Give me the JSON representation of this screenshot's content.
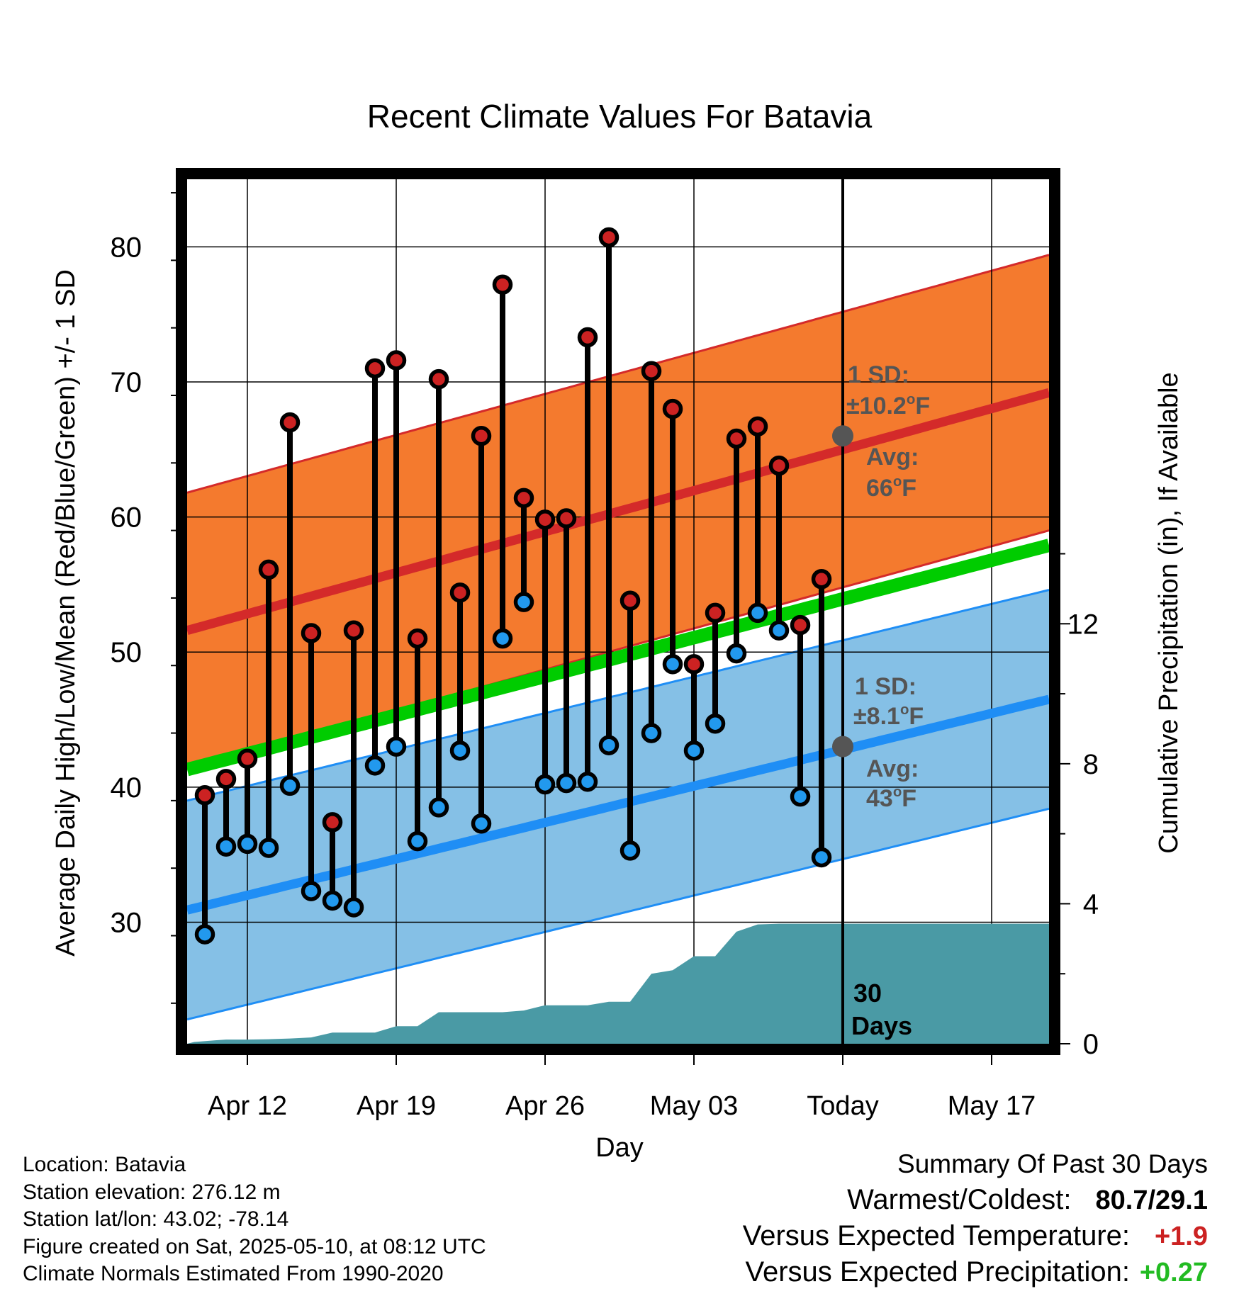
{
  "chart_data": {
    "type": "line",
    "title": "Recent Climate Values For Batavia",
    "xlabel": "Day",
    "ylabel_left": "Average Daily High/Low/Mean (Red/Blue/Green) +/- 1 SD",
    "ylabel_right": "Cumulative Precipitation (in), If Available",
    "x_tick_labels": [
      "Apr 12",
      "Apr 19",
      "Apr 26",
      "May 03",
      "Today",
      "May 17"
    ],
    "x_range_days": [
      "2025-04-08",
      "2025-05-20"
    ],
    "today": "2025-05-10",
    "ylim_left": [
      21,
      85
    ],
    "yticks_left": [
      30,
      40,
      50,
      60,
      70,
      80
    ],
    "ylim_right": [
      0,
      24.7
    ],
    "yticks_right": [
      0,
      4,
      8,
      12
    ],
    "grid": true,
    "normal_high": {
      "start": 51.6,
      "end": 69.2,
      "sd": 10.2
    },
    "normal_low": {
      "start": 30.9,
      "end": 46.5,
      "sd": 8.1
    },
    "normal_mean": {
      "start": 41.3,
      "end": 57.9
    },
    "colors": {
      "high_band": "#f47a2e",
      "high_line": "#d42a2a",
      "low_band": "#85c0e6",
      "low_line": "#1f8ef5",
      "mean_line": "#00cc00",
      "precip_fill": "#4a9aa5",
      "high_dot": "#cc2222",
      "low_dot": "#2299ee",
      "marker_gray": "#555555",
      "positive_temp": "#cc2222",
      "positive_precip": "#22bb22"
    },
    "daily": {
      "dates": [
        "Apr 10",
        "Apr 11",
        "Apr 12",
        "Apr 13",
        "Apr 14",
        "Apr 15",
        "Apr 16",
        "Apr 17",
        "Apr 18",
        "Apr 19",
        "Apr 20",
        "Apr 21",
        "Apr 22",
        "Apr 23",
        "Apr 24",
        "Apr 25",
        "Apr 26",
        "Apr 27",
        "Apr 28",
        "Apr 29",
        "Apr 30",
        "May 01",
        "May 02",
        "May 03",
        "May 04",
        "May 05",
        "May 06",
        "May 07",
        "May 08",
        "May 09"
      ],
      "highs": [
        39.4,
        40.6,
        42.1,
        56.1,
        67.0,
        51.4,
        37.4,
        51.6,
        71.0,
        71.6,
        51.0,
        70.2,
        54.4,
        66.0,
        77.2,
        61.4,
        59.8,
        59.9,
        73.3,
        80.7,
        53.8,
        70.8,
        68.0,
        49.1,
        52.9,
        65.8,
        66.7,
        63.8,
        52.0,
        55.4
      ],
      "lows": [
        29.1,
        35.6,
        35.8,
        35.5,
        40.1,
        32.3,
        31.6,
        31.1,
        41.6,
        43.0,
        36.0,
        38.5,
        42.7,
        37.3,
        51.0,
        53.7,
        40.2,
        40.3,
        40.4,
        43.1,
        35.3,
        44.0,
        49.1,
        42.7,
        44.7,
        49.9,
        52.9,
        51.6,
        39.3,
        34.8
      ]
    },
    "precip_cumulative": {
      "days_offset_from_apr10": [
        -0.5,
        0.5,
        1,
        2,
        3,
        4,
        5,
        6,
        7,
        8,
        9,
        10,
        11,
        12,
        13,
        14,
        15,
        16,
        17,
        18,
        19,
        20,
        21,
        22,
        23,
        24,
        25,
        26,
        27,
        30,
        40
      ],
      "values": [
        0.05,
        0.1,
        0.12,
        0.12,
        0.13,
        0.15,
        0.18,
        0.32,
        0.32,
        0.32,
        0.5,
        0.5,
        0.9,
        0.9,
        0.9,
        0.9,
        0.95,
        1.1,
        1.1,
        1.1,
        1.2,
        1.2,
        2.0,
        2.1,
        2.5,
        2.5,
        3.2,
        3.41,
        3.43,
        3.43,
        3.43
      ]
    },
    "annotations": {
      "high_sd_label": "1 SD:",
      "high_sd_value": "±10.2",
      "high_avg_label": "Avg:",
      "high_avg_value": "66",
      "low_sd_label": "1 SD:",
      "low_sd_value": "±8.1",
      "low_avg_label": "Avg:",
      "low_avg_value": "43",
      "degree_unit": "o",
      "temp_unit": "F",
      "days_number": "30",
      "days_word": "Days"
    }
  },
  "info": {
    "location": "Location: Batavia",
    "elevation": "Station elevation: 276.12 m",
    "latlon": "Station lat/lon: 43.02; -78.14",
    "created": "Figure created on Sat, 2025-05-10, at 08:12 UTC",
    "normals": "Climate Normals Estimated From 1990-2020"
  },
  "summary": {
    "title": "Summary Of Past 30 Days",
    "warm_cold_label": "Warmest/Coldest:",
    "warm_cold_value": "80.7/29.1",
    "temp_label": "Versus Expected Temperature:",
    "temp_value": "+1.9",
    "precip_label": "Versus Expected Precipitation:",
    "precip_value": "+0.27"
  }
}
